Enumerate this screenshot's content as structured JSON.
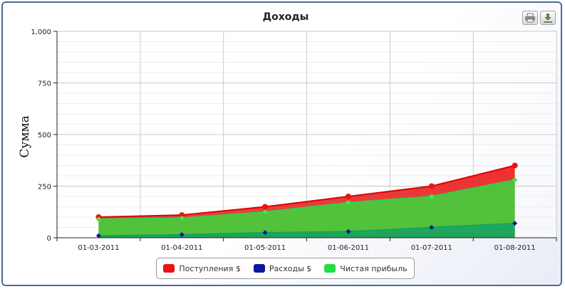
{
  "toolbar": {
    "print_icon": "printer-icon",
    "export_icon": "download-icon"
  },
  "chart_data": {
    "type": "area",
    "title": "Доходы",
    "xlabel": "",
    "ylabel": "Сумма",
    "categories": [
      "01-03-2011",
      "01-04-2011",
      "01-05-2011",
      "01-06-2011",
      "01-07-2011",
      "01-08-2011"
    ],
    "ylim": [
      0,
      1000
    ],
    "yticks": [
      0,
      250,
      500,
      750,
      1000
    ],
    "ytick_labels": [
      "0",
      "250",
      "500",
      "750",
      "1,000"
    ],
    "grid": true,
    "legend_position": "bottom-center",
    "series": [
      {
        "name": "Поступления $",
        "color": "#ee1111",
        "values": [
          100,
          110,
          150,
          200,
          250,
          350
        ]
      },
      {
        "name": "Расходы $",
        "color": "#0a18a0",
        "values": [
          10,
          15,
          25,
          30,
          50,
          70
        ]
      },
      {
        "name": "Чистая прибыль",
        "color": "#22dd44",
        "values": [
          90,
          95,
          125,
          170,
          200,
          280
        ]
      }
    ]
  }
}
